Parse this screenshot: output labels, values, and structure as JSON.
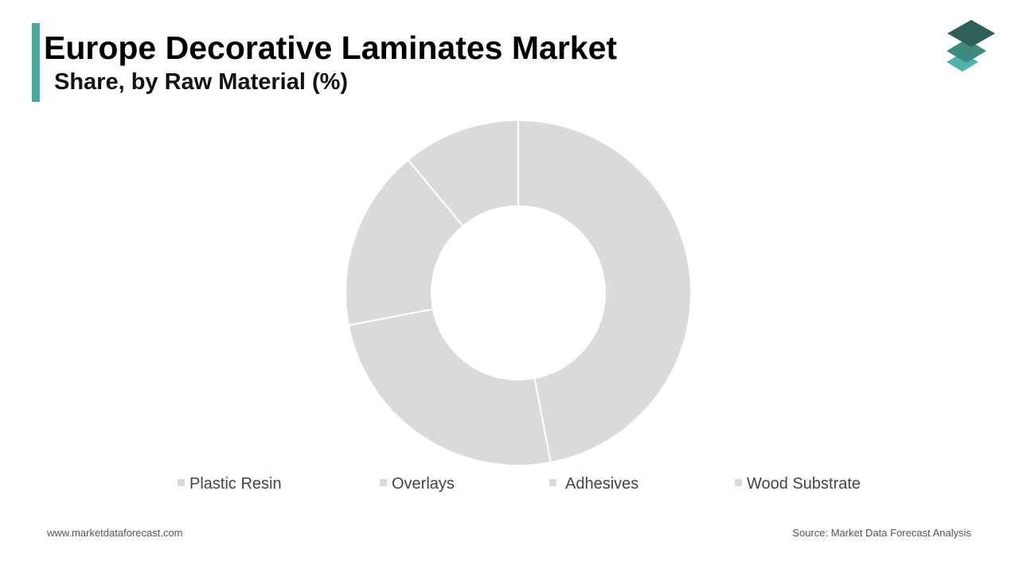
{
  "header": {
    "title": "Europe Decorative Laminates Market",
    "subtitle": "Share, by Raw Material (%)"
  },
  "footer": {
    "website": "www.marketdataforecast.com",
    "source": "Source: Market Data Forecast Analysis"
  },
  "logo": {
    "icon": "stacked-layers-logo-icon",
    "colors": [
      "#2e5f58",
      "#3d8a80",
      "#4fb3ac"
    ]
  },
  "colors": {
    "accent": "#4aa8a3",
    "slice": "#dadada",
    "slice_border": "#ffffff",
    "legend_marker": "#d9d9d9"
  },
  "chart_data": {
    "type": "pie",
    "variant": "donut",
    "title": "Europe Decorative Laminates Market",
    "subtitle": "Share, by Raw Material (%)",
    "categories": [
      "Plastic Resin",
      "Overlays",
      "Adhesives",
      "Wood Substrate"
    ],
    "values": [
      47,
      25,
      17,
      11
    ],
    "start_angle": "12 o'clock",
    "direction": "clockwise",
    "legend_position": "bottom"
  }
}
